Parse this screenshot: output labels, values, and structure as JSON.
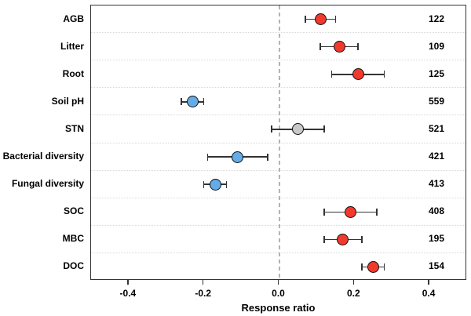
{
  "chart_data": {
    "type": "scatter",
    "subtype": "horizontal-forest-plot-with-error-bars",
    "title": "",
    "xlabel": "Response ratio",
    "ylabel": "",
    "xlim": [
      -0.5,
      0.5
    ],
    "x_ticks": [
      -0.4,
      -0.2,
      0.0,
      0.2,
      0.4
    ],
    "x_tick_labels": [
      "-0.4",
      "-0.2",
      "0.0",
      "0.2",
      "0.4"
    ],
    "grid": "dotted horizontal separator between each row",
    "legend_position": "none",
    "zero_reference_line": {
      "x": 0.0,
      "style": "dashed",
      "color": "#b3b3b3"
    },
    "rows": [
      {
        "label": "AGB",
        "value": 0.11,
        "ci_low": 0.07,
        "ci_high": 0.15,
        "n": "122",
        "color_key": "red"
      },
      {
        "label": "Litter",
        "value": 0.16,
        "ci_low": 0.11,
        "ci_high": 0.21,
        "n": "109",
        "color_key": "red"
      },
      {
        "label": "Root",
        "value": 0.21,
        "ci_low": 0.14,
        "ci_high": 0.28,
        "n": "125",
        "color_key": "red"
      },
      {
        "label": "Soil pH",
        "value": -0.23,
        "ci_low": -0.26,
        "ci_high": -0.2,
        "n": "559",
        "color_key": "blue"
      },
      {
        "label": "STN",
        "value": 0.05,
        "ci_low": -0.02,
        "ci_high": 0.12,
        "n": "521",
        "color_key": "gray"
      },
      {
        "label": "Bacterial diversity",
        "value": -0.11,
        "ci_low": -0.19,
        "ci_high": -0.03,
        "n": "421",
        "color_key": "blue"
      },
      {
        "label": "Fungal diversity",
        "value": -0.17,
        "ci_low": -0.2,
        "ci_high": -0.14,
        "n": "413",
        "color_key": "blue"
      },
      {
        "label": "SOC",
        "value": 0.19,
        "ci_low": 0.12,
        "ci_high": 0.26,
        "n": "408",
        "color_key": "red"
      },
      {
        "label": "MBC",
        "value": 0.17,
        "ci_low": 0.12,
        "ci_high": 0.22,
        "n": "195",
        "color_key": "red"
      },
      {
        "label": "DOC",
        "value": 0.25,
        "ci_low": 0.22,
        "ci_high": 0.28,
        "n": "154",
        "color_key": "red"
      }
    ],
    "colors": {
      "red": "#f1392d",
      "blue": "#64ace8",
      "gray": "#c9c9c9",
      "error_bar": "#333333",
      "marker_outline": "#111111",
      "axis_border": "#333333",
      "gridline": "#d9d9d9",
      "zero_line": "#b3b3b3",
      "text": "#000000",
      "background": "#ffffff"
    }
  }
}
